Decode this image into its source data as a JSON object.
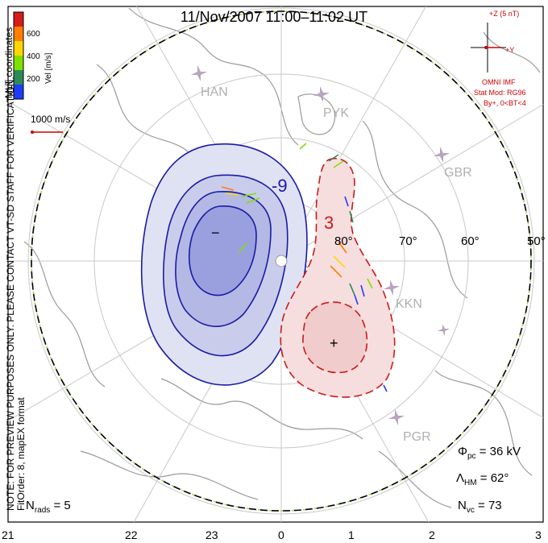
{
  "title": "11/Nov/2007 11:00–11:02 UT",
  "colorbar": {
    "label": "Vel [m/s]",
    "ticks": [
      "600",
      "400",
      "200"
    ],
    "colors": [
      "#d81b1b",
      "#ff7f00",
      "#ffd700",
      "#80e000",
      "#2e8b57",
      "#1e3cff"
    ]
  },
  "coords_label": "MLT coordinates",
  "reference_vector": {
    "label": "1000 m/s",
    "color": "#cc0000"
  },
  "imf": {
    "scale_label": "+Z (5 nT)",
    "y_label": "+Y",
    "source": "OMNI IMF",
    "model": "Stat Mod: RG96",
    "condition": "By+, 0<BT<4",
    "color": "#cc0000"
  },
  "sidebar_notes": [
    "NOTE: FOR PREVIEW PURPOSES ONLY. PLEASE CONTACT VT-SD STAFF FOR VERIFICATION.",
    "FitOrder: 8, mapEX format"
  ],
  "stations": [
    {
      "code": "HAN"
    },
    {
      "code": "PYK"
    },
    {
      "code": "GBR"
    },
    {
      "code": "KKN"
    },
    {
      "code": "PGR"
    }
  ],
  "latitude_labels": [
    "80°",
    "70°",
    "60°",
    "50°"
  ],
  "contours": {
    "dusk_label": "-9",
    "dawn_label": "3",
    "dusk_min_symbol": "−",
    "dawn_max_symbol": "+",
    "dusk_color": "#1a1aa6",
    "dawn_color": "#cc1a1a"
  },
  "stats": {
    "n_rads_sym": "N",
    "n_rads_sub": "rads",
    "n_rads_val": "= 5",
    "phi_sym": "Φ",
    "phi_sub": "pc",
    "phi_val": "= 36 kV",
    "lambda_sym": "Λ",
    "lambda_sub": "HM",
    "lambda_val": "= 62°",
    "nvc_sym": "N",
    "nvc_sub": "vc",
    "nvc_val": "= 73"
  },
  "mlt_labels": [
    "21",
    "22",
    "23",
    "0",
    "1",
    "2",
    "3"
  ]
}
